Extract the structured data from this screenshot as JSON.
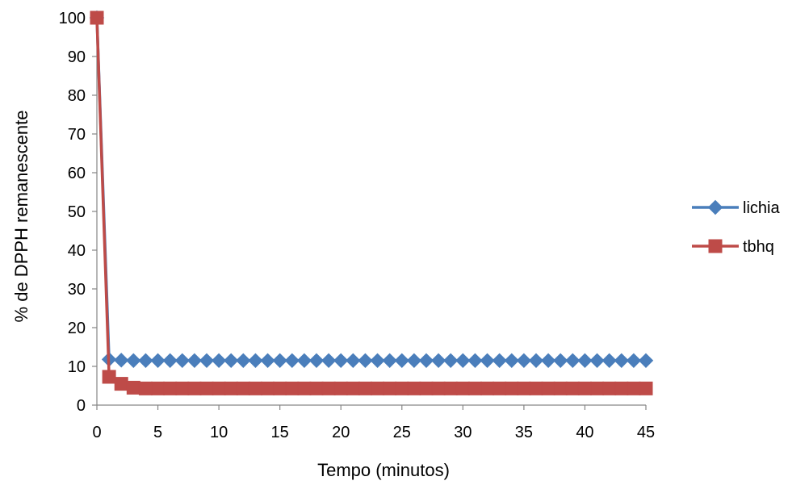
{
  "chart_data": {
    "type": "line",
    "xlabel": "Tempo (minutos)",
    "ylabel": "% de DPPH remanescente",
    "xlim": [
      0,
      45
    ],
    "ylim": [
      0,
      100
    ],
    "x_ticks": [
      0,
      5,
      10,
      15,
      20,
      25,
      30,
      35,
      40,
      45
    ],
    "y_ticks": [
      0,
      10,
      20,
      30,
      40,
      50,
      60,
      70,
      80,
      90,
      100
    ],
    "grid": false,
    "legend_position": "right",
    "x": [
      0,
      1,
      2,
      3,
      4,
      5,
      6,
      7,
      8,
      9,
      10,
      11,
      12,
      13,
      14,
      15,
      16,
      17,
      18,
      19,
      20,
      21,
      22,
      23,
      24,
      25,
      26,
      27,
      28,
      29,
      30,
      31,
      32,
      33,
      34,
      35,
      36,
      37,
      38,
      39,
      40,
      41,
      42,
      43,
      44,
      45
    ],
    "series": [
      {
        "name": "lichia",
        "color": "#4a7ebb",
        "marker": "diamond",
        "values": [
          100,
          11.8,
          11.6,
          11.5,
          11.5,
          11.5,
          11.5,
          11.5,
          11.5,
          11.5,
          11.5,
          11.5,
          11.5,
          11.5,
          11.5,
          11.5,
          11.5,
          11.5,
          11.5,
          11.5,
          11.5,
          11.5,
          11.5,
          11.5,
          11.5,
          11.5,
          11.5,
          11.5,
          11.5,
          11.5,
          11.5,
          11.5,
          11.5,
          11.5,
          11.5,
          11.5,
          11.5,
          11.5,
          11.5,
          11.5,
          11.5,
          11.5,
          11.5,
          11.5,
          11.5,
          11.5
        ]
      },
      {
        "name": "tbhq",
        "color": "#be4b48",
        "marker": "square",
        "values": [
          100,
          7.3,
          5.5,
          4.5,
          4.3,
          4.3,
          4.3,
          4.3,
          4.3,
          4.3,
          4.3,
          4.3,
          4.3,
          4.3,
          4.3,
          4.3,
          4.3,
          4.3,
          4.3,
          4.3,
          4.3,
          4.3,
          4.3,
          4.3,
          4.3,
          4.3,
          4.3,
          4.3,
          4.3,
          4.3,
          4.3,
          4.3,
          4.3,
          4.3,
          4.3,
          4.3,
          4.3,
          4.3,
          4.3,
          4.3,
          4.3,
          4.3,
          4.3,
          4.3,
          4.3,
          4.3
        ]
      }
    ]
  }
}
